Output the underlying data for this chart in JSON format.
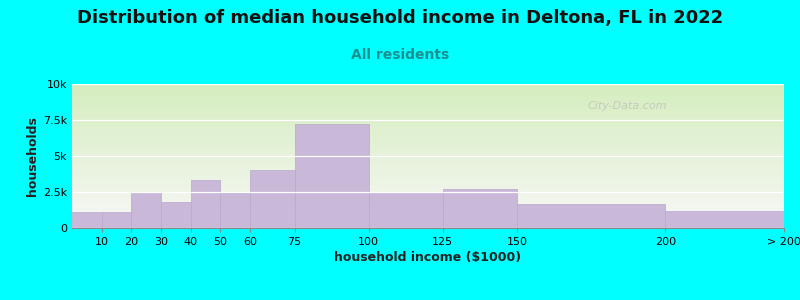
{
  "title": "Distribution of median household income in Deltona, FL in 2022",
  "subtitle": "All residents",
  "xlabel": "household income ($1000)",
  "ylabel": "households",
  "background_color": "#00FFFF",
  "bar_color": "#c9b8d8",
  "bar_edge_color": "#b8a8cc",
  "watermark": "City-Data.com",
  "bin_edges": [
    0,
    10,
    20,
    30,
    40,
    50,
    60,
    75,
    100,
    125,
    150,
    200,
    240
  ],
  "values": [
    1100,
    1100,
    2500,
    1800,
    3300,
    2400,
    4000,
    7200,
    2500,
    2700,
    1700,
    1200
  ],
  "xtick_positions": [
    10,
    20,
    30,
    40,
    50,
    60,
    75,
    100,
    125,
    150,
    200,
    240
  ],
  "xtick_labels": [
    "10",
    "20",
    "30",
    "40",
    "50",
    "60",
    "75",
    "100",
    "125",
    "150",
    "200",
    "> 200"
  ],
  "ylim": [
    0,
    10000
  ],
  "yticks": [
    0,
    2500,
    5000,
    7500,
    10000
  ],
  "ytick_labels": [
    "0",
    "2.5k",
    "5k",
    "7.5k",
    "10k"
  ],
  "plot_bg_top_color": "#d5edbe",
  "plot_bg_bottom_color": "#f8f8f8",
  "title_fontsize": 13,
  "subtitle_fontsize": 10,
  "axis_label_fontsize": 9,
  "tick_fontsize": 8
}
